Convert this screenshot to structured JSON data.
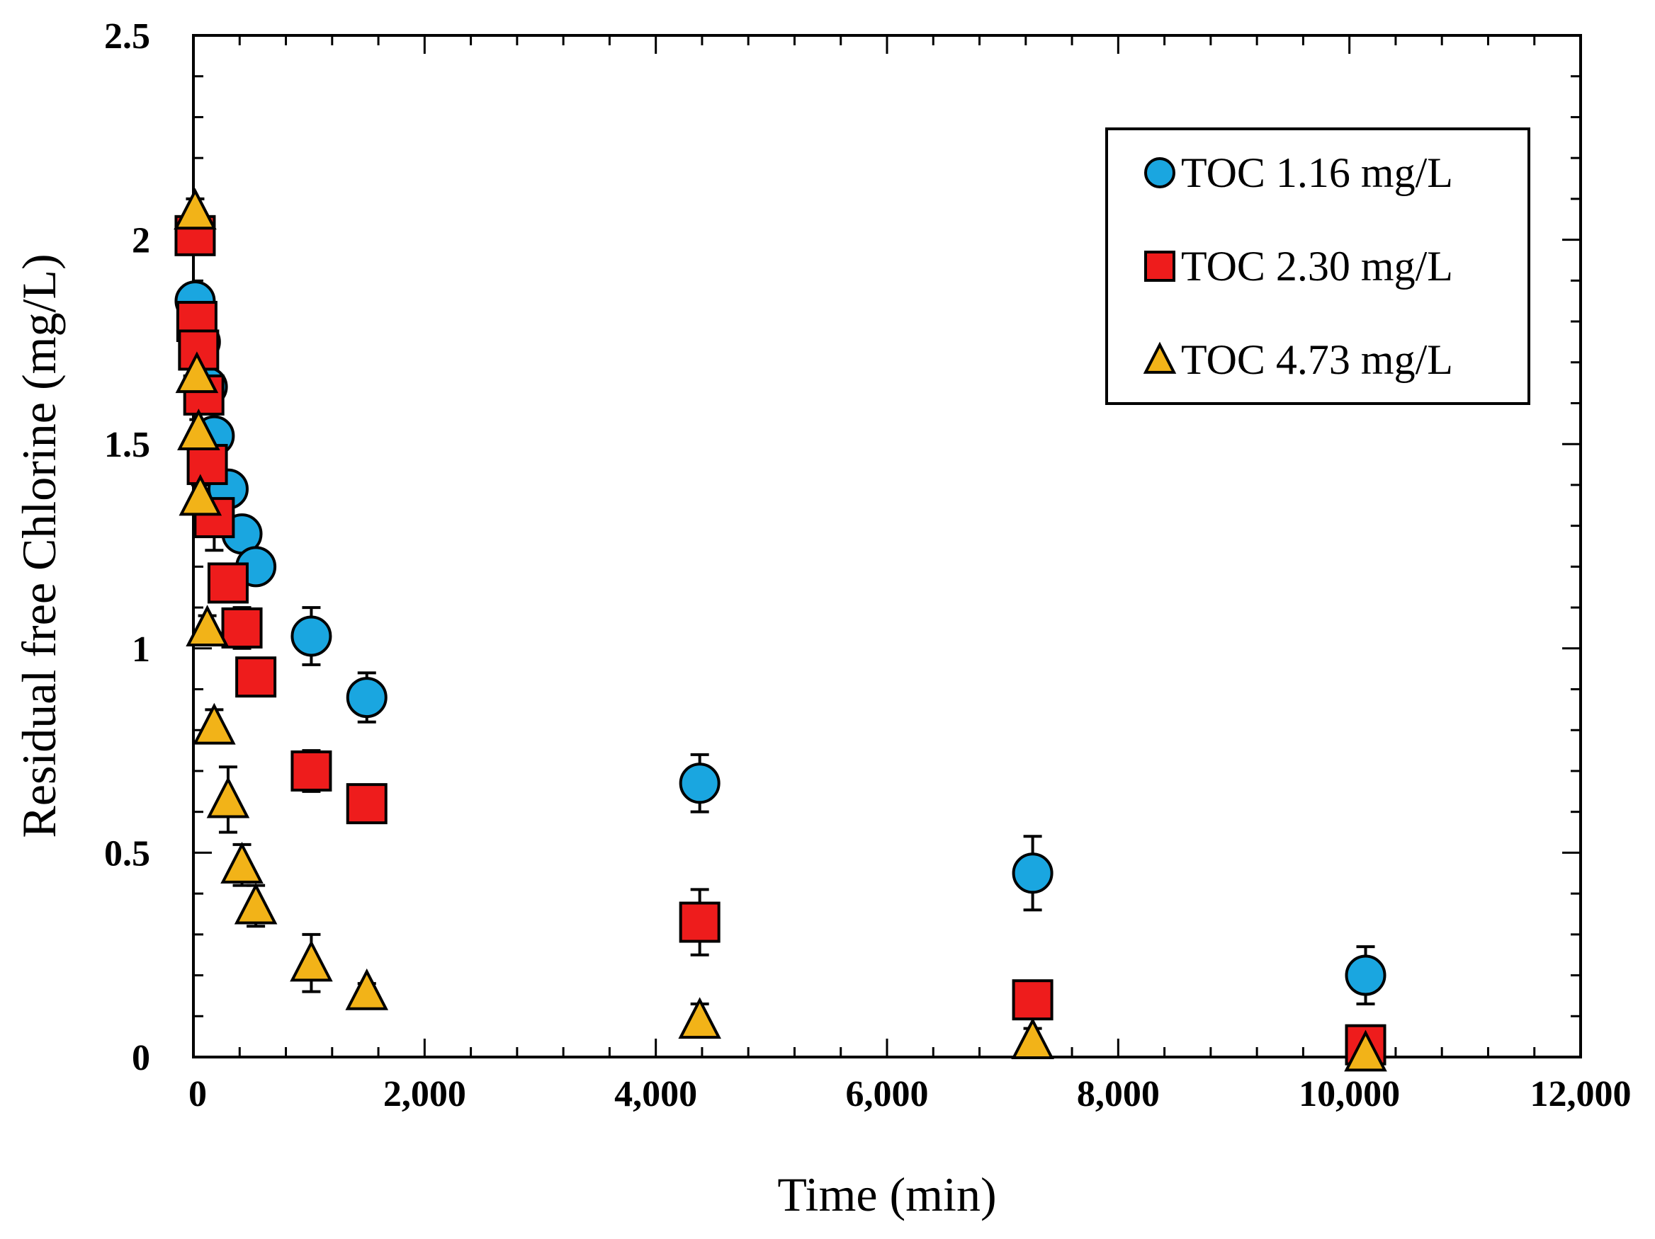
{
  "chart_data": {
    "type": "scatter",
    "title": "",
    "xlabel": "Time (min)",
    "ylabel": "Residual free Chlorine (mg/L)",
    "xlim": [
      0,
      12000
    ],
    "ylim": [
      0,
      2.5
    ],
    "xticks": [
      0,
      2000,
      4000,
      6000,
      8000,
      10000,
      12000
    ],
    "xtick_labels": [
      "0",
      "2,000",
      "4,000",
      "6,000",
      "8,000",
      "10,000",
      "12,000"
    ],
    "yticks": [
      0,
      0.5,
      1,
      1.5,
      2,
      2.5
    ],
    "ytick_labels": [
      "0",
      "0.5",
      "1",
      "1.5",
      "2",
      "2.5"
    ],
    "grid": false,
    "legend_position": "top-right",
    "series": [
      {
        "name": "TOC 1.16 mg/L",
        "marker": "circle",
        "color": "#1aa6e0",
        "points": [
          {
            "x": 15,
            "y": 1.85,
            "err": 0.03
          },
          {
            "x": 60,
            "y": 1.75,
            "err": 0.03
          },
          {
            "x": 120,
            "y": 1.64,
            "err": 0.03
          },
          {
            "x": 180,
            "y": 1.52,
            "err": 0.03
          },
          {
            "x": 300,
            "y": 1.39,
            "err": 0.03
          },
          {
            "x": 420,
            "y": 1.28,
            "err": 0.03
          },
          {
            "x": 540,
            "y": 1.2,
            "err": 0.03
          },
          {
            "x": 1020,
            "y": 1.03,
            "err": 0.07
          },
          {
            "x": 1500,
            "y": 0.88,
            "err": 0.06
          },
          {
            "x": 4380,
            "y": 0.67,
            "err": 0.07
          },
          {
            "x": 7260,
            "y": 0.45,
            "err": 0.09
          },
          {
            "x": 10140,
            "y": 0.2,
            "err": 0.07
          }
        ]
      },
      {
        "name": "TOC 2.30 mg/L",
        "marker": "square",
        "color": "#ee1c1c",
        "points": [
          {
            "x": 15,
            "y": 2.01,
            "err": 0.02
          },
          {
            "x": 30,
            "y": 1.8,
            "err": 0.02
          },
          {
            "x": 45,
            "y": 1.73,
            "err": 0.02
          },
          {
            "x": 90,
            "y": 1.62,
            "err": 0.02
          },
          {
            "x": 120,
            "y": 1.45,
            "err": 0.03
          },
          {
            "x": 180,
            "y": 1.32,
            "err": 0.08
          },
          {
            "x": 300,
            "y": 1.16,
            "err": 0.03
          },
          {
            "x": 420,
            "y": 1.05,
            "err": 0.05
          },
          {
            "x": 540,
            "y": 0.93,
            "err": 0.03
          },
          {
            "x": 1020,
            "y": 0.7,
            "err": 0.05
          },
          {
            "x": 1500,
            "y": 0.62,
            "err": 0.03
          },
          {
            "x": 4380,
            "y": 0.33,
            "err": 0.08
          },
          {
            "x": 7260,
            "y": 0.14,
            "err": 0.03
          },
          {
            "x": 10140,
            "y": 0.03,
            "err": 0.02
          }
        ]
      },
      {
        "name": "TOC 4.73 mg/L",
        "marker": "triangle",
        "color": "#f2b318",
        "points": [
          {
            "x": 15,
            "y": 2.07,
            "err": 0.03
          },
          {
            "x": 30,
            "y": 1.67,
            "err": 0.03
          },
          {
            "x": 45,
            "y": 1.53,
            "err": 0.03
          },
          {
            "x": 60,
            "y": 1.37,
            "err": 0.03
          },
          {
            "x": 120,
            "y": 1.05,
            "err": 0.03
          },
          {
            "x": 180,
            "y": 0.81,
            "err": 0.04
          },
          {
            "x": 300,
            "y": 0.63,
            "err": 0.08
          },
          {
            "x": 420,
            "y": 0.47,
            "err": 0.05
          },
          {
            "x": 540,
            "y": 0.37,
            "err": 0.05
          },
          {
            "x": 1020,
            "y": 0.23,
            "err": 0.07
          },
          {
            "x": 1500,
            "y": 0.16,
            "err": 0.02
          },
          {
            "x": 4380,
            "y": 0.09,
            "err": 0.04
          },
          {
            "x": 7260,
            "y": 0.04,
            "err": 0.03
          },
          {
            "x": 10140,
            "y": 0.01,
            "err": 0.01
          }
        ]
      }
    ]
  }
}
